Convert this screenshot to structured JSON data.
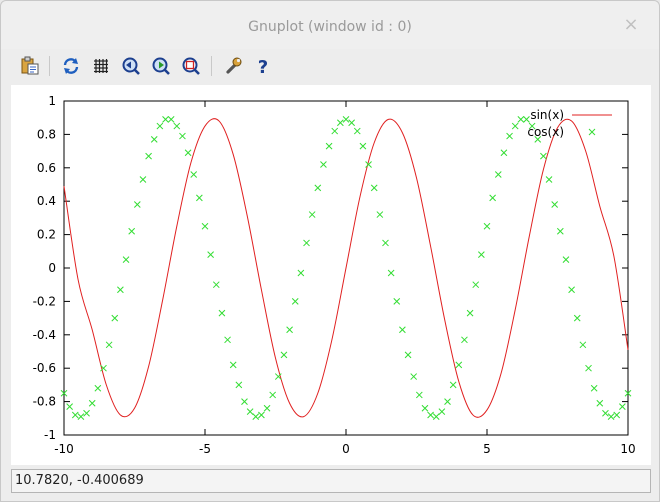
{
  "window": {
    "title": "Gnuplot (window id : 0)",
    "close_glyph": "×"
  },
  "toolbar": {
    "buttons": [
      {
        "name": "copy-clipboard-button",
        "icon": "clipboard-icon",
        "tooltip": ""
      },
      {
        "name": "replot-button",
        "icon": "refresh-icon",
        "tooltip": ""
      },
      {
        "name": "grid-button",
        "icon": "grid-icon",
        "tooltip": ""
      },
      {
        "name": "previous-zoom-button",
        "icon": "zoom-previous-icon",
        "tooltip": ""
      },
      {
        "name": "next-zoom-button",
        "icon": "zoom-next-icon",
        "tooltip": ""
      },
      {
        "name": "autoscale-button",
        "icon": "autoscale-icon",
        "tooltip": ""
      },
      {
        "name": "settings-button",
        "icon": "wrench-icon",
        "tooltip": ""
      },
      {
        "name": "help-button",
        "icon": "help-icon",
        "tooltip": ""
      }
    ]
  },
  "status": {
    "coordinates": "10.7820, -0.400689"
  },
  "chart_data": {
    "type": "line",
    "title": "",
    "xlabel": "",
    "ylabel": "",
    "xlim": [
      -10,
      10
    ],
    "ylim": [
      -1,
      1
    ],
    "x_ticks": [
      "-10",
      "-5",
      "0",
      "5",
      "10"
    ],
    "y_ticks": [
      "-1",
      "-0.8",
      "-0.6",
      "-0.4",
      "-0.2",
      "0",
      "0.2",
      "0.4",
      "0.6",
      "0.8",
      "1"
    ],
    "grid": false,
    "legend_position": "top-right",
    "series": [
      {
        "name": "sin(x)",
        "style": "lines",
        "color": "#e02020",
        "x": [
          -10,
          -9.5,
          -9,
          -8.5,
          -8,
          -7.5,
          -7,
          -6.5,
          -6,
          -5.5,
          -5,
          -4.5,
          -4,
          -3.5,
          -3,
          -2.5,
          -2,
          -1.5,
          -1,
          -0.5,
          0,
          0.5,
          1,
          1.5,
          2,
          2.5,
          3,
          3.5,
          4,
          4.5,
          5,
          5.5,
          6,
          6.5,
          7,
          7.5,
          8,
          8.5,
          9,
          9.5,
          10
        ],
        "y": [
          0.49,
          -0.07,
          -0.37,
          -0.7,
          -0.88,
          -0.84,
          -0.59,
          -0.19,
          0.25,
          0.63,
          0.85,
          0.88,
          0.68,
          0.31,
          -0.13,
          -0.54,
          -0.81,
          -0.89,
          -0.75,
          -0.43,
          0.0,
          0.43,
          0.75,
          0.89,
          0.81,
          0.54,
          0.13,
          -0.31,
          -0.68,
          -0.88,
          -0.85,
          -0.63,
          -0.25,
          0.19,
          0.59,
          0.84,
          0.88,
          0.7,
          0.37,
          0.07,
          -0.49
        ]
      },
      {
        "name": "cos(x)",
        "style": "points",
        "color": "#33dd33",
        "x": [
          -10,
          -9.8,
          -9.6,
          -9.4,
          -9.2,
          -9,
          -8.8,
          -8.6,
          -8.4,
          -8.2,
          -8,
          -7.8,
          -7.6,
          -7.4,
          -7.2,
          -7,
          -6.8,
          -6.6,
          -6.4,
          -6.2,
          -6,
          -5.8,
          -5.6,
          -5.4,
          -5.2,
          -5,
          -4.8,
          -4.6,
          -4.4,
          -4.2,
          -4,
          -3.8,
          -3.6,
          -3.4,
          -3.2,
          -3,
          -2.8,
          -2.6,
          -2.4,
          -2.2,
          -2,
          -1.8,
          -1.6,
          -1.4,
          -1.2,
          -1,
          -0.8,
          -0.6,
          -0.4,
          -0.2,
          0,
          0.2,
          0.4,
          0.6,
          0.8,
          1,
          1.2,
          1.4,
          1.6,
          1.8,
          2,
          2.2,
          2.4,
          2.6,
          2.8,
          3,
          3.2,
          3.4,
          3.6,
          3.8,
          4,
          4.2,
          4.4,
          4.6,
          4.8,
          5,
          5.2,
          5.4,
          5.6,
          5.8,
          6,
          6.2,
          6.4,
          6.6,
          6.8,
          7,
          7.2,
          7.4,
          7.6,
          7.8,
          8,
          8.2,
          8.4,
          8.6,
          8.8,
          9,
          9.2,
          9.4,
          9.6,
          9.8,
          10
        ],
        "y": [
          -0.75,
          -0.83,
          -0.88,
          -0.89,
          -0.87,
          -0.81,
          -0.72,
          -0.6,
          -0.46,
          -0.3,
          -0.13,
          0.05,
          0.22,
          0.38,
          0.53,
          0.67,
          0.77,
          0.85,
          0.89,
          0.89,
          0.85,
          0.79,
          0.69,
          0.56,
          0.42,
          0.25,
          0.08,
          -0.1,
          -0.27,
          -0.43,
          -0.58,
          -0.7,
          -0.8,
          -0.86,
          -0.89,
          -0.88,
          -0.84,
          -0.76,
          -0.65,
          -0.52,
          -0.37,
          -0.2,
          -0.03,
          0.15,
          0.32,
          0.48,
          0.62,
          0.73,
          0.82,
          0.87,
          0.89,
          0.87,
          0.82,
          0.73,
          0.62,
          0.48,
          0.32,
          0.15,
          -0.03,
          -0.2,
          -0.37,
          -0.52,
          -0.65,
          -0.76,
          -0.84,
          -0.88,
          -0.89,
          -0.86,
          -0.8,
          -0.7,
          -0.58,
          -0.43,
          -0.27,
          -0.1,
          0.08,
          0.25,
          0.42,
          0.56,
          0.69,
          0.79,
          0.85,
          0.89,
          0.89,
          0.85,
          0.77,
          0.67,
          0.53,
          0.38,
          0.22,
          0.05,
          -0.13,
          -0.3,
          -0.46,
          -0.6,
          -0.72,
          -0.81,
          -0.87,
          -0.89,
          -0.88,
          -0.83,
          -0.75
        ]
      }
    ]
  }
}
